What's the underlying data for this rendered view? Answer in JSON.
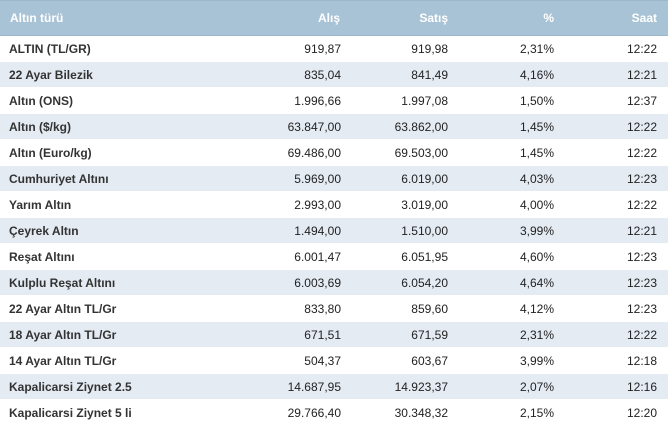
{
  "table": {
    "headers": [
      "Altın türü",
      "Alış",
      "Satış",
      "%",
      "Saat"
    ],
    "rows": [
      [
        "ALTIN (TL/GR)",
        "919,87",
        "919,98",
        "2,31%",
        "12:22"
      ],
      [
        "22 Ayar Bilezik",
        "835,04",
        "841,49",
        "4,16%",
        "12:21"
      ],
      [
        "Altın (ONS)",
        "1.996,66",
        "1.997,08",
        "1,50%",
        "12:37"
      ],
      [
        "Altın ($/kg)",
        "63.847,00",
        "63.862,00",
        "1,45%",
        "12:22"
      ],
      [
        "Altın (Euro/kg)",
        "69.486,00",
        "69.503,00",
        "1,45%",
        "12:22"
      ],
      [
        "Cumhuriyet Altını",
        "5.969,00",
        "6.019,00",
        "4,03%",
        "12:23"
      ],
      [
        "Yarım Altın",
        "2.993,00",
        "3.019,00",
        "4,00%",
        "12:22"
      ],
      [
        "Çeyrek Altın",
        "1.494,00",
        "1.510,00",
        "3,99%",
        "12:21"
      ],
      [
        "Reşat Altını",
        "6.001,47",
        "6.051,95",
        "4,60%",
        "12:23"
      ],
      [
        "Kulplu Reşat Altını",
        "6.003,69",
        "6.054,20",
        "4,64%",
        "12:23"
      ],
      [
        "22 Ayar Altın TL/Gr",
        "833,80",
        "859,60",
        "4,12%",
        "12:23"
      ],
      [
        "18 Ayar Altın TL/Gr",
        "671,51",
        "671,59",
        "2,31%",
        "12:22"
      ],
      [
        "14 Ayar Altın TL/Gr",
        "504,37",
        "603,67",
        "3,99%",
        "12:18"
      ],
      [
        "Kapalicarsi Ziynet 2.5",
        "14.687,95",
        "14.923,37",
        "2,07%",
        "12:16"
      ],
      [
        "Kapalicarsi Ziynet 5 li",
        "29.766,40",
        "30.348,32",
        "2,15%",
        "12:20"
      ]
    ]
  },
  "colors": {
    "header_bg": "#a9c3d6",
    "header_text": "#ffffff",
    "row_alt_bg": "#e4ebf3",
    "row_bg": "#ffffff"
  }
}
